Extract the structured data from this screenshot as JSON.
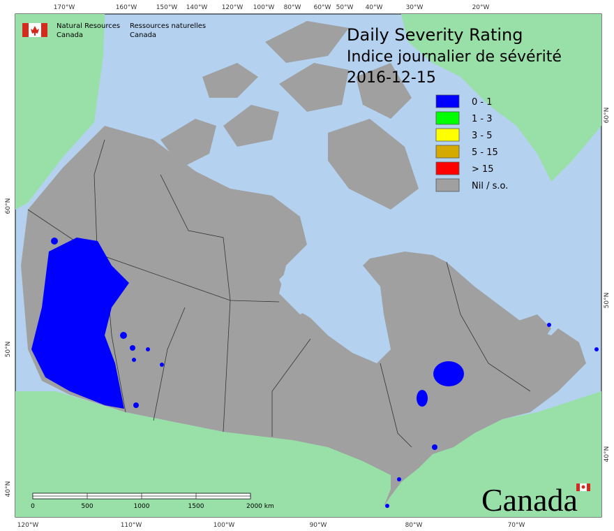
{
  "org": {
    "en_line1": "Natural Resources",
    "en_line2": "Canada",
    "fr_line1": "Ressources naturelles",
    "fr_line2": "Canada"
  },
  "title": {
    "line1": "Daily Severity Rating",
    "line2": "Indice journalier de sévérité",
    "date": "2016-12-15"
  },
  "legend": [
    {
      "label": "0 - 1",
      "color": "#0000ff"
    },
    {
      "label": "1 - 3",
      "color": "#00ff00"
    },
    {
      "label": "3 - 5",
      "color": "#ffff00"
    },
    {
      "label": "5 - 15",
      "color": "#d4aa00"
    },
    {
      "label": "> 15",
      "color": "#ff0000"
    },
    {
      "label": "Nil / s.o.",
      "color": "#a0a0a0"
    }
  ],
  "graticule": {
    "top": [
      "170°W",
      "160°W",
      "150°W",
      "140°W",
      "120°W",
      "100°W",
      "80°W",
      "60°W",
      "50°W",
      "40°W",
      "30°W",
      "20°W"
    ],
    "bottom": [
      "120°W",
      "110°W",
      "100°W",
      "90°W",
      "80°W",
      "70°W"
    ],
    "left": [
      "60°N",
      "50°N",
      "40°N"
    ],
    "right": [
      "60°N",
      "50°N",
      "40°N"
    ]
  },
  "scale_bar": {
    "labels": [
      "0",
      "500",
      "1000",
      "1500",
      "2000 km"
    ]
  },
  "wordmark": "Canada"
}
